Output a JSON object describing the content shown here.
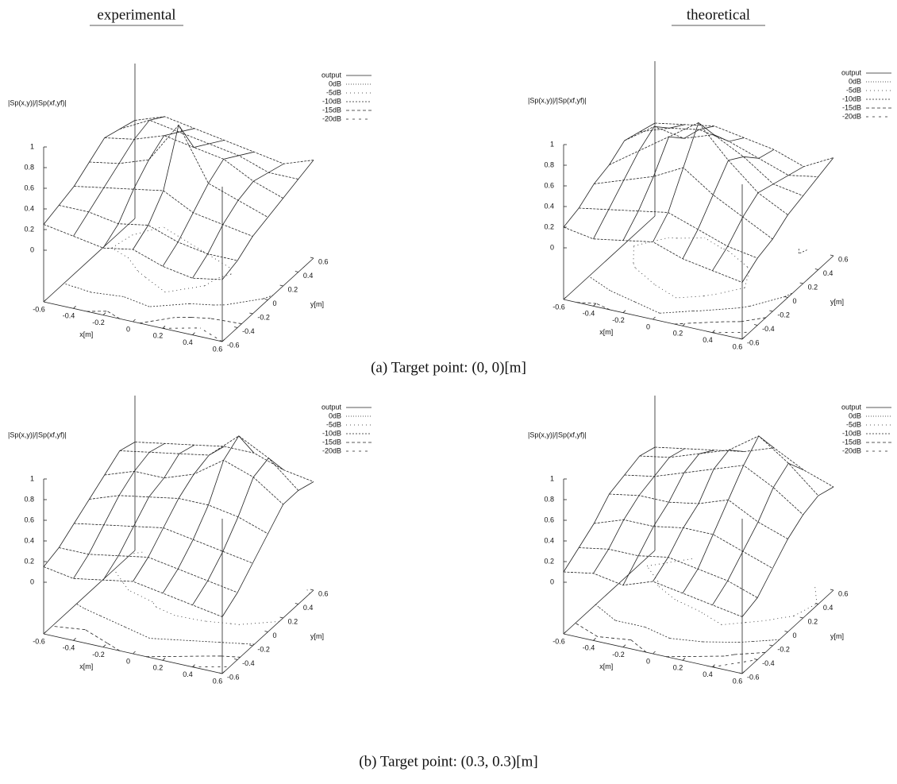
{
  "column_titles": [
    "experimental",
    "theoretical"
  ],
  "captions": [
    "(a) Target point: (0, 0)[m]",
    "(b) Target point: (0.3, 0.3)[m]"
  ],
  "chart_data": [
    {
      "type": "surface",
      "zlabel": "|Sp(x,y)|/|Sp(xf,yf)|",
      "xlabel": "x[m]",
      "ylabel": "y[m]",
      "surface_name": "output",
      "contour_levels": [
        {
          "value": 0,
          "label": "0dB"
        },
        {
          "value": -5,
          "label": "-5dB"
        },
        {
          "value": -10,
          "label": "-10dB"
        },
        {
          "value": -15,
          "label": "-15dB"
        },
        {
          "value": -20,
          "label": "-20dB"
        }
      ],
      "x": [
        -0.6,
        -0.4,
        -0.2,
        0,
        0.2,
        0.4,
        0.6
      ],
      "y": [
        -0.6,
        -0.4,
        -0.2,
        0,
        0.2,
        0.4,
        0.6
      ],
      "z": [
        [
          0.25,
          0.3,
          0.35,
          0.45,
          0.55,
          0.5,
          0.45
        ],
        [
          0.2,
          0.3,
          0.4,
          0.5,
          0.6,
          0.65,
          0.55
        ],
        [
          0.15,
          0.25,
          0.45,
          0.6,
          0.7,
          0.6,
          0.5
        ],
        [
          0.2,
          0.3,
          0.5,
          1.0,
          0.65,
          0.55,
          0.45
        ],
        [
          0.1,
          0.2,
          0.35,
          0.5,
          0.6,
          0.5,
          0.4
        ],
        [
          0.05,
          0.15,
          0.3,
          0.4,
          0.45,
          0.4,
          0.35
        ],
        [
          0.1,
          0.15,
          0.25,
          0.3,
          0.35,
          0.4,
          0.45
        ]
      ],
      "xlim": [
        -0.6,
        0.6
      ],
      "ylim": [
        -0.6,
        0.6
      ],
      "zlim": [
        -0.5,
        1
      ],
      "xticks": [
        -0.6,
        -0.4,
        -0.2,
        0,
        0.2,
        0.4,
        0.6
      ],
      "yticks": [
        -0.6,
        -0.4,
        -0.2,
        0,
        0.2,
        0.4,
        0.6
      ],
      "zticks": [
        0,
        0.2,
        0.4,
        0.6,
        0.8,
        1
      ]
    },
    {
      "type": "surface",
      "zlabel": "|Sp(x,y)|/|Sp(xf,yf)|",
      "xlabel": "x[m]",
      "ylabel": "y[m]",
      "surface_name": "output",
      "contour_levels": [
        {
          "value": 0,
          "label": "0dB"
        },
        {
          "value": -5,
          "label": "-5dB"
        },
        {
          "value": -10,
          "label": "-10dB"
        },
        {
          "value": -15,
          "label": "-15dB"
        },
        {
          "value": -20,
          "label": "-20dB"
        }
      ],
      "x": [
        -0.6,
        -0.4,
        -0.2,
        0,
        0.2,
        0.4,
        0.6
      ],
      "y": [
        -0.6,
        -0.4,
        -0.2,
        0,
        0.2,
        0.4,
        0.6
      ],
      "z": [
        [
          0.2,
          0.25,
          0.35,
          0.4,
          0.5,
          0.45,
          0.4
        ],
        [
          0.15,
          0.3,
          0.45,
          0.6,
          0.7,
          0.55,
          0.45
        ],
        [
          0.2,
          0.35,
          0.55,
          0.8,
          0.65,
          0.6,
          0.5
        ],
        [
          0.25,
          0.4,
          0.7,
          1.0,
          0.75,
          0.55,
          0.45
        ],
        [
          0.15,
          0.3,
          0.5,
          0.7,
          0.6,
          0.45,
          0.4
        ],
        [
          0.1,
          0.2,
          0.35,
          0.45,
          0.4,
          0.35,
          0.3
        ],
        [
          0.05,
          0.15,
          0.2,
          0.3,
          0.35,
          0.4,
          0.45
        ]
      ],
      "xlim": [
        -0.6,
        0.6
      ],
      "ylim": [
        -0.6,
        0.6
      ],
      "zlim": [
        -0.5,
        1
      ],
      "xticks": [
        -0.6,
        -0.4,
        -0.2,
        0,
        0.2,
        0.4,
        0.6
      ],
      "yticks": [
        -0.6,
        -0.4,
        -0.2,
        0,
        0.2,
        0.4,
        0.6
      ],
      "zticks": [
        0,
        0.2,
        0.4,
        0.6,
        0.8,
        1
      ]
    },
    {
      "type": "surface",
      "zlabel": "|Sp(x,y)|/|Sp(xf,yf)|",
      "xlabel": "x[m]",
      "ylabel": "y[m]",
      "surface_name": "output",
      "contour_levels": [
        {
          "value": 0,
          "label": "0dB"
        },
        {
          "value": -5,
          "label": "-5dB"
        },
        {
          "value": -10,
          "label": "-10dB"
        },
        {
          "value": -15,
          "label": "-15dB"
        },
        {
          "value": -20,
          "label": "-20dB"
        }
      ],
      "x": [
        -0.6,
        -0.4,
        -0.2,
        0,
        0.2,
        0.4,
        0.6
      ],
      "y": [
        -0.6,
        -0.4,
        -0.2,
        0,
        0.2,
        0.4,
        0.6
      ],
      "z": [
        [
          0.15,
          0.2,
          0.3,
          0.4,
          0.5,
          0.6,
          0.55
        ],
        [
          0.1,
          0.2,
          0.35,
          0.5,
          0.6,
          0.65,
          0.6
        ],
        [
          0.15,
          0.25,
          0.4,
          0.55,
          0.6,
          0.7,
          0.65
        ],
        [
          0.2,
          0.3,
          0.45,
          0.6,
          0.7,
          0.75,
          0.7
        ],
        [
          0.15,
          0.25,
          0.4,
          0.6,
          0.9,
          1.0,
          0.7
        ],
        [
          0.1,
          0.2,
          0.35,
          0.55,
          0.8,
          0.85,
          0.6
        ],
        [
          0.05,
          0.15,
          0.3,
          0.45,
          0.6,
          0.6,
          0.55
        ]
      ],
      "xlim": [
        -0.6,
        0.6
      ],
      "ylim": [
        -0.6,
        0.6
      ],
      "zlim": [
        -0.5,
        1
      ],
      "xticks": [
        -0.6,
        -0.4,
        -0.2,
        0,
        0.2,
        0.4,
        0.6
      ],
      "yticks": [
        -0.6,
        -0.4,
        -0.2,
        0,
        0.2,
        0.4,
        0.6
      ],
      "zticks": [
        0,
        0.2,
        0.4,
        0.6,
        0.8,
        1
      ]
    },
    {
      "type": "surface",
      "zlabel": "|Sp(x,y)|/|Sp(xf,yf)|",
      "xlabel": "x[m]",
      "ylabel": "y[m]",
      "surface_name": "output",
      "contour_levels": [
        {
          "value": 0,
          "label": "0dB"
        },
        {
          "value": -5,
          "label": "-5dB"
        },
        {
          "value": -10,
          "label": "-10dB"
        },
        {
          "value": -15,
          "label": "-15dB"
        },
        {
          "value": -20,
          "label": "-20dB"
        }
      ],
      "x": [
        -0.6,
        -0.4,
        -0.2,
        0,
        0.2,
        0.4,
        0.6
      ],
      "y": [
        -0.6,
        -0.4,
        -0.2,
        0,
        0.2,
        0.4,
        0.6
      ],
      "z": [
        [
          0.1,
          0.2,
          0.3,
          0.45,
          0.5,
          0.55,
          0.5
        ],
        [
          0.15,
          0.25,
          0.4,
          0.5,
          0.55,
          0.6,
          0.55
        ],
        [
          0.1,
          0.25,
          0.4,
          0.5,
          0.65,
          0.7,
          0.6
        ],
        [
          0.2,
          0.3,
          0.45,
          0.55,
          0.75,
          0.8,
          0.65
        ],
        [
          0.15,
          0.25,
          0.45,
          0.65,
          0.85,
          1.0,
          0.75
        ],
        [
          0.1,
          0.2,
          0.35,
          0.5,
          0.7,
          0.8,
          0.6
        ],
        [
          0.05,
          0.1,
          0.25,
          0.4,
          0.5,
          0.55,
          0.5
        ]
      ],
      "xlim": [
        -0.6,
        0.6
      ],
      "ylim": [
        -0.6,
        0.6
      ],
      "zlim": [
        -0.5,
        1
      ],
      "xticks": [
        -0.6,
        -0.4,
        -0.2,
        0,
        0.2,
        0.4,
        0.6
      ],
      "yticks": [
        -0.6,
        -0.4,
        -0.2,
        0,
        0.2,
        0.4,
        0.6
      ],
      "zticks": [
        0,
        0.2,
        0.4,
        0.6,
        0.8,
        1
      ]
    }
  ]
}
